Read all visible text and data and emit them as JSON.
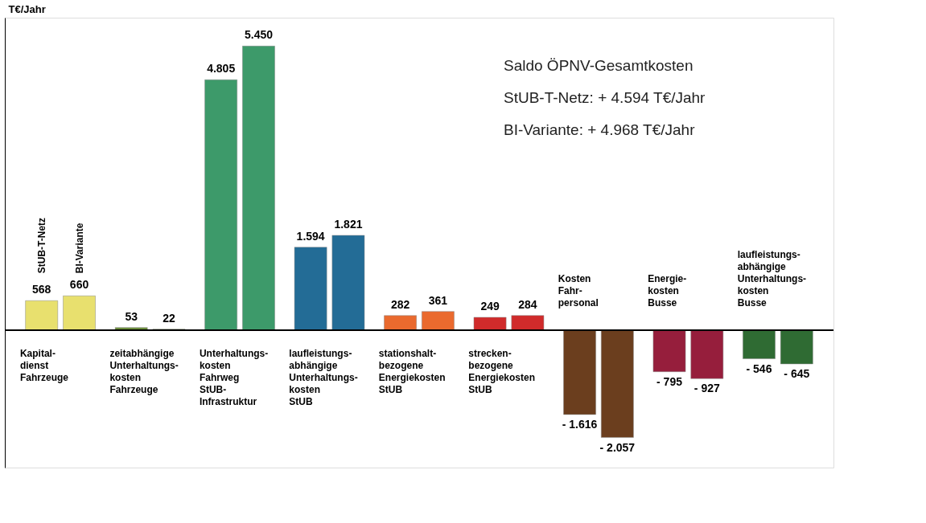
{
  "chart_data": {
    "type": "bar",
    "ylabel": "T€/Jahr",
    "categories": [
      "Kapital-\ndienst\nFahrzeuge",
      "zeitabhängige\nUnterhaltungs-\nkosten\nFahrzeuge",
      "Unterhaltungs-\nkosten\nFahrweg\nStUB-\nInfrastruktur",
      "laufleistungs-\nabhängige\nUnterhaltungs-\nkosten\nStUB",
      "stationshalt-\nbezogene\nEnergiekosten\nStUB",
      "strecken-\nbezogene\nEnergiekosten\nStUB",
      "Kosten\nFahr-\npersonal",
      "Energie-\nkosten\nBusse",
      "laufleistungs-\nabhängige\nUnterhaltungs-\nkosten\nBusse"
    ],
    "series": [
      {
        "name": "StUB-T-Netz",
        "colors": [
          "#e8e06e",
          "#6b8e3a",
          "#3d9a6a",
          "#236c96",
          "#ea6a2e",
          "#d02b2b",
          "#6b3e1e",
          "#961e3c",
          "#2f6b33"
        ],
        "values": [
          568,
          53,
          4805,
          1594,
          282,
          249,
          -1616,
          -795,
          -546
        ],
        "value_labels": [
          "568",
          "53",
          "4.805",
          "1.594",
          "282",
          "249",
          "- 1.616",
          "- 795",
          "- 546"
        ]
      },
      {
        "name": "BI-Variante",
        "colors": [
          "#e8e06e",
          "#6b8e3a",
          "#3d9a6a",
          "#236c96",
          "#ea6a2e",
          "#d02b2b",
          "#6b3e1e",
          "#961e3c",
          "#2f6b33"
        ],
        "values": [
          660,
          22,
          5450,
          1821,
          361,
          284,
          -2057,
          -927,
          -645
        ],
        "value_labels": [
          "660",
          "22",
          "5.450",
          "1.821",
          "361",
          "284",
          "- 2.057",
          "- 927",
          "- 645"
        ]
      }
    ],
    "annotations": [
      "Saldo ÖPNV-Gesamtkosten",
      "StUB-T-Netz:       + 4.594 T€/Jahr",
      "BI-Variante:        + 4.968 T€/Jahr"
    ],
    "tick_labels": false,
    "grid": false,
    "legend": false
  }
}
